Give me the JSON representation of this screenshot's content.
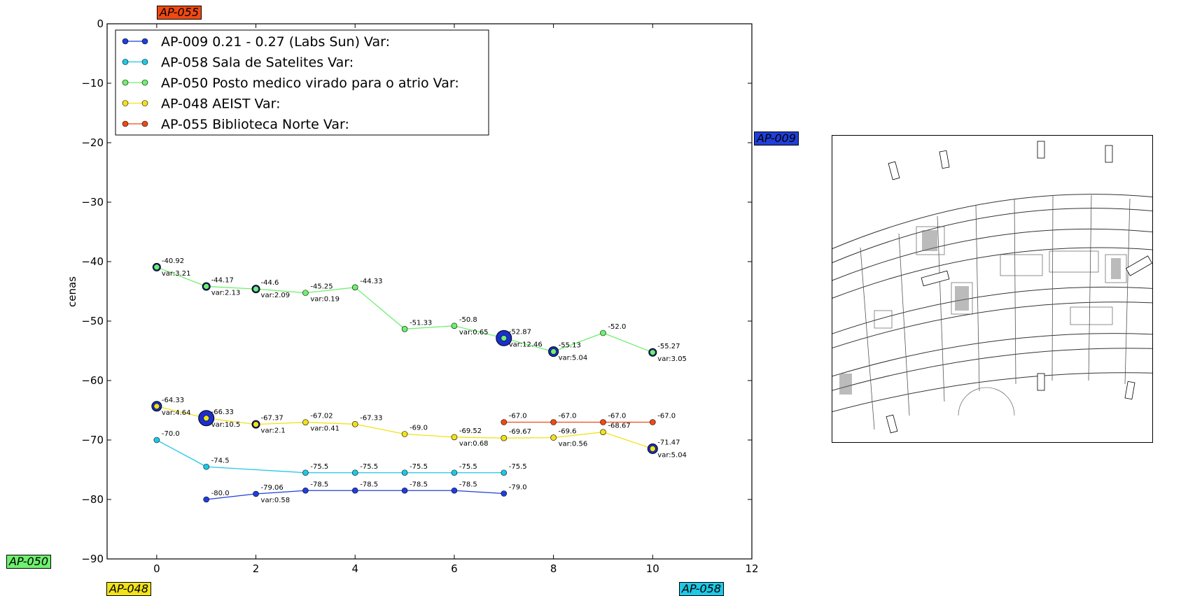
{
  "chart_data": {
    "type": "line",
    "ylabel": "cenas",
    "xlabel": "",
    "xlim": [
      -1,
      12
    ],
    "ylim": [
      -90,
      0
    ],
    "x_ticks": [
      0,
      2,
      4,
      6,
      8,
      10,
      12
    ],
    "y_ticks": [
      0,
      -10,
      -20,
      -30,
      -40,
      -50,
      -60,
      -70,
      -80,
      -90
    ],
    "grid": false,
    "legend_position": "top-left",
    "series": [
      {
        "name": "AP-009 0.21 - 0.27 (Labs Sun)   Var:",
        "color": "#1f3fd9",
        "points": [
          {
            "x": 1,
            "y": -80.0,
            "label": "-80.0"
          },
          {
            "x": 2,
            "y": -79.06,
            "label": "-79.06",
            "var": "var:0.58"
          },
          {
            "x": 3,
            "y": -78.5,
            "label": "-78.5"
          },
          {
            "x": 4,
            "y": -78.5,
            "label": "-78.5"
          },
          {
            "x": 5,
            "y": -78.5,
            "label": "-78.5"
          },
          {
            "x": 6,
            "y": -78.5,
            "label": "-78.5"
          },
          {
            "x": 7,
            "y": -79.0,
            "label": "-79.0"
          }
        ]
      },
      {
        "name": "AP-058 Sala de Satelites     Var:",
        "color": "#1ec8e6",
        "points": [
          {
            "x": 0,
            "y": -70.0,
            "label": "-70.0"
          },
          {
            "x": 1,
            "y": -74.5,
            "label": "-74.5"
          },
          {
            "x": 3,
            "y": -75.5,
            "label": "-75.5"
          },
          {
            "x": 4,
            "y": -75.5,
            "label": "-75.5"
          },
          {
            "x": 5,
            "y": -75.5,
            "label": "-75.5"
          },
          {
            "x": 6,
            "y": -75.5,
            "label": "-75.5"
          },
          {
            "x": 7,
            "y": -75.5,
            "label": "-75.5"
          }
        ]
      },
      {
        "name": "AP-050 Posto medico virado para o atrio  Var:",
        "color": "#6ff06f",
        "points": [
          {
            "x": 0,
            "y": -40.92,
            "label": "-40.92",
            "var": "var:3.21",
            "big": 1
          },
          {
            "x": 1,
            "y": -44.17,
            "label": "-44.17",
            "var": "var:2.13",
            "big": 1
          },
          {
            "x": 2,
            "y": -44.6,
            "label": "-44.6",
            "var": "var:2.09",
            "big": 1
          },
          {
            "x": 3,
            "y": -45.25,
            "label": "-45.25",
            "var": "var:0.19"
          },
          {
            "x": 4,
            "y": -44.33,
            "label": "-44.33"
          },
          {
            "x": 5,
            "y": -51.33,
            "label": "-51.33"
          },
          {
            "x": 6,
            "y": -50.8,
            "label": "-50.8",
            "var": "var:0.65"
          },
          {
            "x": 7,
            "y": -52.87,
            "label": "-52.87",
            "var": "var:12.46",
            "big": 3
          },
          {
            "x": 8,
            "y": -55.13,
            "label": "-55.13",
            "var": "var:5.04",
            "big": 2
          },
          {
            "x": 9,
            "y": -52.0,
            "label": "-52.0"
          },
          {
            "x": 10,
            "y": -55.27,
            "label": "-55.27",
            "var": "var:3.05",
            "big": 1
          }
        ]
      },
      {
        "name": "AP-048 AEIST       Var:",
        "color": "#f2e21a",
        "points": [
          {
            "x": 0,
            "y": -64.33,
            "label": "-64.33",
            "var": "var:4.64",
            "big": 2
          },
          {
            "x": 1,
            "y": -66.33,
            "label": "-66.33",
            "var": "var:10.5",
            "big": 3
          },
          {
            "x": 2,
            "y": -67.37,
            "label": "-67.37",
            "var": "var:2.1",
            "big": 1
          },
          {
            "x": 3,
            "y": -67.02,
            "label": "-67.02",
            "var": "var:0.41"
          },
          {
            "x": 4,
            "y": -67.33,
            "label": "-67.33"
          },
          {
            "x": 5,
            "y": -69.0,
            "label": "-69.0"
          },
          {
            "x": 6,
            "y": -69.52,
            "label": "-69.52",
            "var": "var:0.68"
          },
          {
            "x": 7,
            "y": -69.67,
            "label": "-69.67"
          },
          {
            "x": 8,
            "y": -69.6,
            "label": "-69.6",
            "var": "var:0.56"
          },
          {
            "x": 9,
            "y": -68.67,
            "label": "-68.67"
          },
          {
            "x": 10,
            "y": -71.47,
            "label": "-71.47",
            "var": "var:5.04",
            "big": 2
          }
        ]
      },
      {
        "name": "AP-055 Biblioteca Norte      Var:",
        "color": "#ef4a12",
        "points": [
          {
            "x": 7,
            "y": -67.0,
            "label": "-67.0"
          },
          {
            "x": 8,
            "y": -67.0,
            "label": "-67.0"
          },
          {
            "x": 9,
            "y": -67.0,
            "label": "-67.0"
          },
          {
            "x": 10,
            "y": -67.0,
            "label": "-67.0"
          }
        ]
      }
    ]
  },
  "ap_tags": [
    {
      "text": "AP-055",
      "color": "#ef4a12"
    },
    {
      "text": "AP-009",
      "color": "#1f3fd9"
    },
    {
      "text": "AP-050",
      "color": "#6ff06f"
    },
    {
      "text": "AP-048",
      "color": "#f2e21a"
    },
    {
      "text": "AP-058",
      "color": "#1ec8e6"
    }
  ],
  "floorplan": {
    "icon": "floor-plan-icon"
  }
}
